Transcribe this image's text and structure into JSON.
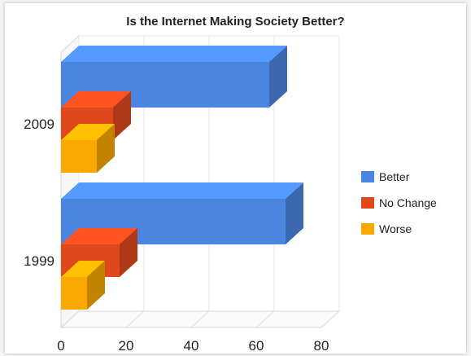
{
  "chart_data": {
    "type": "bar",
    "orientation": "horizontal",
    "style": "3d",
    "title": "Is the Internet Making Society Better?",
    "categories": [
      "2009",
      "1999"
    ],
    "series": [
      {
        "name": "Better",
        "color": "#4a86e0",
        "values": [
          64,
          69
        ]
      },
      {
        "name": "No Change",
        "color": "#e0491d",
        "values": [
          16,
          18
        ]
      },
      {
        "name": "Worse",
        "color": "#f9a800",
        "values": [
          11,
          8
        ]
      }
    ],
    "xlim": [
      0,
      80
    ],
    "xticks": [
      0,
      20,
      40,
      60,
      80
    ],
    "grid": true,
    "legend_position": "right"
  }
}
